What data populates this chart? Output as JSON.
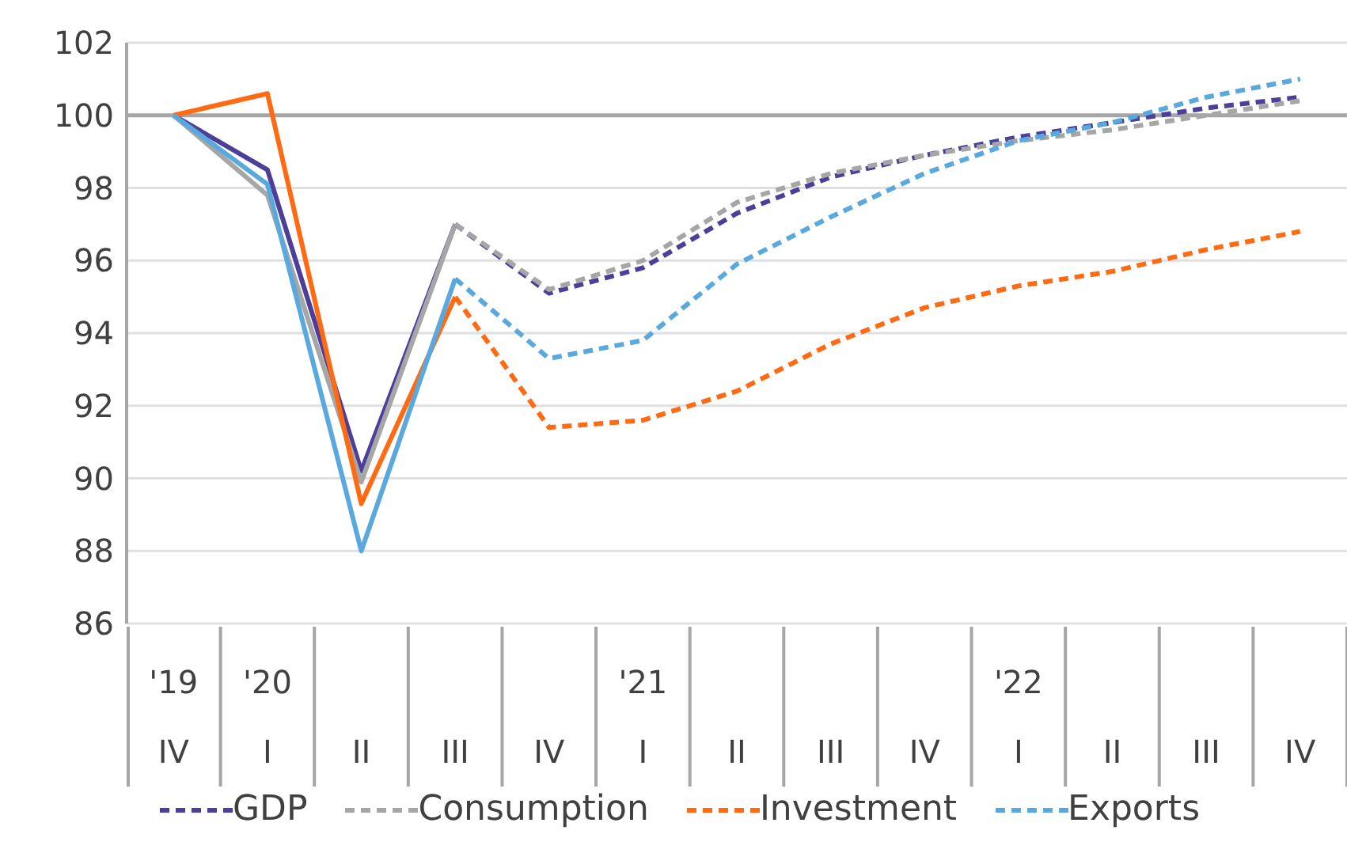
{
  "chart_data": {
    "type": "line",
    "categories": [
      "'19\nIV",
      "'20\nI",
      "II",
      "III",
      "IV",
      "'21\nI",
      "II",
      "III",
      "IV",
      "'22\nI",
      "II",
      "III",
      "IV"
    ],
    "series": [
      {
        "color": "#4b3f99",
        "line_style": "solid",
        "values": [
          100,
          98.5,
          90.2,
          97.0,
          null,
          null,
          null,
          null,
          null,
          null,
          null,
          null,
          null
        ]
      },
      {
        "color": "#a6a6a6",
        "line_style": "solid",
        "values": [
          100,
          97.8,
          89.9,
          97.0,
          null,
          null,
          null,
          null,
          null,
          null,
          null,
          null,
          null
        ]
      },
      {
        "color": "#ff6a13",
        "line_style": "solid",
        "values": [
          100,
          100.6,
          89.3,
          95.0,
          null,
          null,
          null,
          null,
          null,
          null,
          null,
          null,
          null
        ]
      },
      {
        "color": "#5aa9de",
        "line_style": "solid",
        "values": [
          100,
          98.1,
          88.0,
          95.5,
          null,
          null,
          null,
          null,
          null,
          null,
          null,
          null,
          null
        ]
      },
      {
        "name": "GDP",
        "color": "#4b3f99",
        "line_style": "dashed",
        "values": [
          null,
          null,
          null,
          97.0,
          95.1,
          95.8,
          97.3,
          98.3,
          98.9,
          99.4,
          99.8,
          100.2,
          100.5
        ]
      },
      {
        "name": "Consumption",
        "color": "#a6a6a6",
        "line_style": "dashed",
        "values": [
          null,
          null,
          null,
          97.0,
          95.2,
          96.0,
          97.6,
          98.4,
          98.9,
          99.3,
          99.6,
          100.0,
          100.4
        ]
      },
      {
        "name": "Investment",
        "color": "#ff6a13",
        "line_style": "dashed",
        "values": [
          null,
          null,
          null,
          95.0,
          91.4,
          91.6,
          92.4,
          93.7,
          94.7,
          95.3,
          95.7,
          96.3,
          96.8
        ]
      },
      {
        "name": "Exports",
        "color": "#5aa9de",
        "line_style": "dashed",
        "values": [
          null,
          null,
          null,
          95.5,
          93.3,
          93.8,
          95.9,
          97.2,
          98.4,
          99.3,
          99.8,
          100.5,
          101.0
        ]
      }
    ],
    "ylim": [
      86,
      102
    ],
    "yticks": [
      86,
      88,
      90,
      92,
      94,
      96,
      98,
      100,
      102
    ],
    "grid": "y",
    "legend": "bottom",
    "marker": "none",
    "ref_lines": [
      {
        "axis": "y",
        "value": 100,
        "color": "#a6a6a6"
      }
    ]
  }
}
